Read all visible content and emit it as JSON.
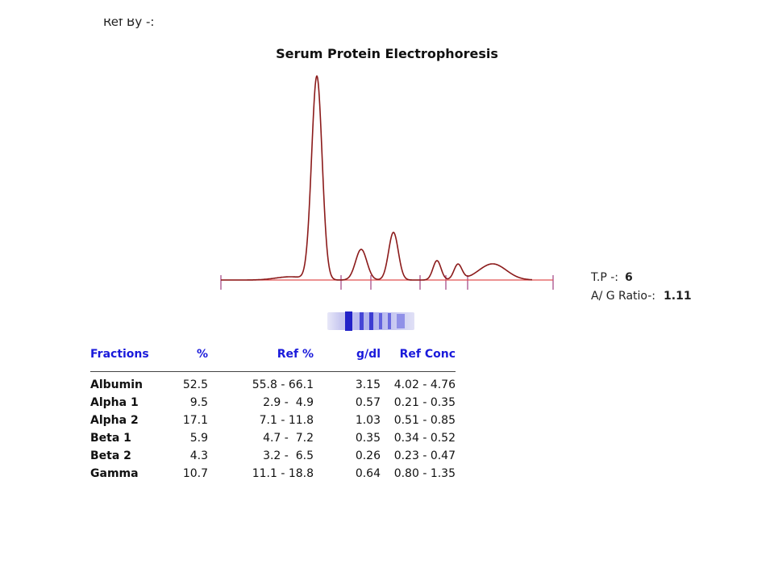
{
  "header": {
    "ref_by": "Ref By -:"
  },
  "title": "Serum Protein Electrophoresis",
  "summary": {
    "tp_label": "T.P -:",
    "tp_value": "6",
    "ag_label": "A/ G Ratio-:",
    "ag_value": "1.11"
  },
  "colors": {
    "curve": "#8b1a1a",
    "baseline": "#e05050",
    "tick": "#a04080",
    "header_text": "#1a1adb",
    "gel_band": "#2a2ad0"
  },
  "table": {
    "headers": [
      "Fractions",
      "%",
      "Ref %",
      "g/dl",
      "Ref Conc"
    ],
    "rows": [
      [
        "Albumin",
        "52.5",
        "55.8 - 66.1",
        "3.15",
        "4.02 - 4.76"
      ],
      [
        "Alpha 1",
        "9.5",
        "2.9 -  4.9",
        "0.57",
        "0.21 - 0.35"
      ],
      [
        "Alpha 2",
        "17.1",
        "7.1 - 11.8",
        "1.03",
        "0.51 - 0.85"
      ],
      [
        "Beta 1",
        "5.9",
        "4.7 -  7.2",
        "0.35",
        "0.34 - 0.52"
      ],
      [
        "Beta 2",
        "4.3",
        "3.2 -  6.5",
        "0.26",
        "0.23 - 0.47"
      ],
      [
        "Gamma",
        "10.7",
        "11.1 - 18.8",
        "0.64",
        "0.80 - 1.35"
      ]
    ]
  }
}
